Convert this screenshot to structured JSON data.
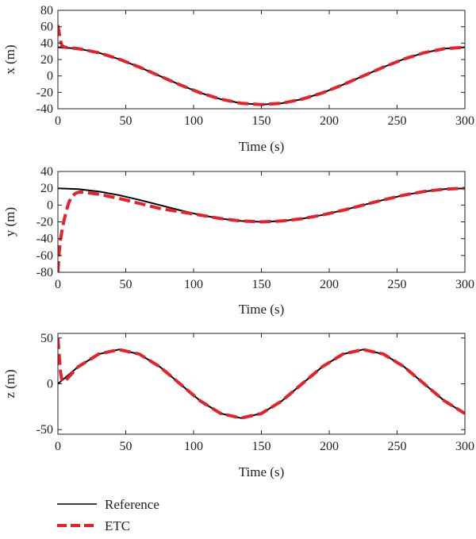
{
  "chart_data": [
    {
      "type": "line",
      "xlabel": "Time (s)",
      "ylabel": "x (m)",
      "xlim": [
        0,
        300
      ],
      "ylim": [
        -40,
        80
      ],
      "xticks": [
        0,
        50,
        100,
        150,
        200,
        250,
        300
      ],
      "yticks": [
        -40,
        -20,
        0,
        20,
        40,
        60,
        80
      ],
      "grid": false,
      "series": [
        {
          "name": "Reference",
          "x": [
            0,
            15,
            30,
            45,
            60,
            75,
            90,
            105,
            120,
            135,
            150,
            165,
            180,
            195,
            210,
            225,
            240,
            255,
            270,
            285,
            300
          ],
          "y": [
            35,
            33.3,
            28.3,
            20.6,
            10.8,
            0,
            -10.8,
            -20.6,
            -28.3,
            -33.3,
            -35,
            -33.3,
            -28.3,
            -20.6,
            -10.8,
            0,
            10.8,
            20.6,
            28.3,
            33.3,
            35
          ]
        },
        {
          "name": "ETC",
          "x": [
            0,
            1,
            2,
            3,
            5,
            15,
            30,
            45,
            60,
            75,
            90,
            105,
            120,
            135,
            150,
            165,
            180,
            195,
            210,
            225,
            240,
            255,
            270,
            285,
            300
          ],
          "y": [
            62,
            52,
            42,
            37,
            35,
            33.3,
            28.3,
            20.6,
            10.8,
            0,
            -10.8,
            -20.6,
            -28.3,
            -33.3,
            -35,
            -33.3,
            -28.3,
            -20.6,
            -10.8,
            0,
            10.8,
            20.6,
            28.3,
            33.3,
            35
          ]
        }
      ]
    },
    {
      "type": "line",
      "xlabel": "Time (s)",
      "ylabel": "y (m)",
      "xlim": [
        0,
        300
      ],
      "ylim": [
        -80,
        40
      ],
      "xticks": [
        0,
        50,
        100,
        150,
        200,
        250,
        300
      ],
      "yticks": [
        -80,
        -60,
        -40,
        -20,
        0,
        20,
        40
      ],
      "grid": false,
      "series": [
        {
          "name": "Reference",
          "x": [
            0,
            15,
            30,
            45,
            60,
            75,
            90,
            105,
            120,
            135,
            150,
            165,
            180,
            195,
            210,
            225,
            240,
            255,
            270,
            285,
            300
          ],
          "y": [
            20,
            19.0,
            16.2,
            11.8,
            6.2,
            0,
            -6.2,
            -11.8,
            -16.2,
            -19.0,
            -20,
            -19.0,
            -16.2,
            -11.8,
            -6.2,
            0,
            6.2,
            11.8,
            16.2,
            19.0,
            20
          ]
        },
        {
          "name": "ETC",
          "x": [
            0,
            1,
            2,
            4,
            6,
            8,
            10,
            13,
            16,
            20,
            25,
            30,
            45,
            60,
            75,
            90,
            105,
            120,
            135,
            150,
            165,
            180,
            195,
            210,
            225,
            240,
            255,
            270,
            285,
            300
          ],
          "y": [
            -80,
            -55,
            -40,
            -22,
            -8,
            3,
            10,
            14,
            15.5,
            15,
            14,
            13,
            8,
            2,
            -4,
            -8,
            -12,
            -16,
            -19,
            -20,
            -19,
            -16.2,
            -11.8,
            -6.2,
            0,
            6.2,
            11.8,
            16.2,
            19.0,
            20
          ]
        }
      ]
    },
    {
      "type": "line",
      "xlabel": "Time (s)",
      "ylabel": "z (m)",
      "xlim": [
        0,
        300
      ],
      "ylim": [
        -55,
        55
      ],
      "xticks": [
        0,
        50,
        100,
        150,
        200,
        250,
        300
      ],
      "yticks": [
        -50,
        0,
        50
      ],
      "grid": false,
      "series": [
        {
          "name": "Reference",
          "x": [
            0,
            15,
            30,
            45,
            60,
            75,
            90,
            105,
            120,
            135,
            150,
            165,
            180,
            195,
            210,
            225,
            240,
            255,
            270,
            285,
            300
          ],
          "y": [
            0,
            18.7,
            32.4,
            37.4,
            32.4,
            18.7,
            0,
            -18.7,
            -32.4,
            -37.4,
            -32.4,
            -18.7,
            0,
            18.7,
            32.4,
            37.4,
            32.4,
            18.7,
            0,
            -18.7,
            -32.4
          ]
        },
        {
          "name": "ETC",
          "x": [
            0,
            1,
            2,
            3,
            5,
            15,
            30,
            45,
            60,
            75,
            90,
            105,
            120,
            135,
            150,
            165,
            180,
            195,
            210,
            225,
            240,
            255,
            270,
            285,
            300
          ],
          "y": [
            50,
            30,
            12,
            4,
            2.5,
            18.7,
            32.4,
            37.4,
            32.4,
            18.7,
            0,
            -18.7,
            -32.4,
            -37.4,
            -32.4,
            -18.7,
            0,
            18.7,
            32.4,
            37.4,
            32.4,
            18.7,
            0,
            -18.7,
            -32.4
          ]
        }
      ]
    }
  ],
  "legend": [
    {
      "label": "Reference",
      "color": "#000000",
      "style": "solid"
    },
    {
      "label": "ETC",
      "color": "#e8202a",
      "style": "dashed"
    }
  ],
  "colors": {
    "reference": "#000000",
    "etc": "#e8202a"
  }
}
